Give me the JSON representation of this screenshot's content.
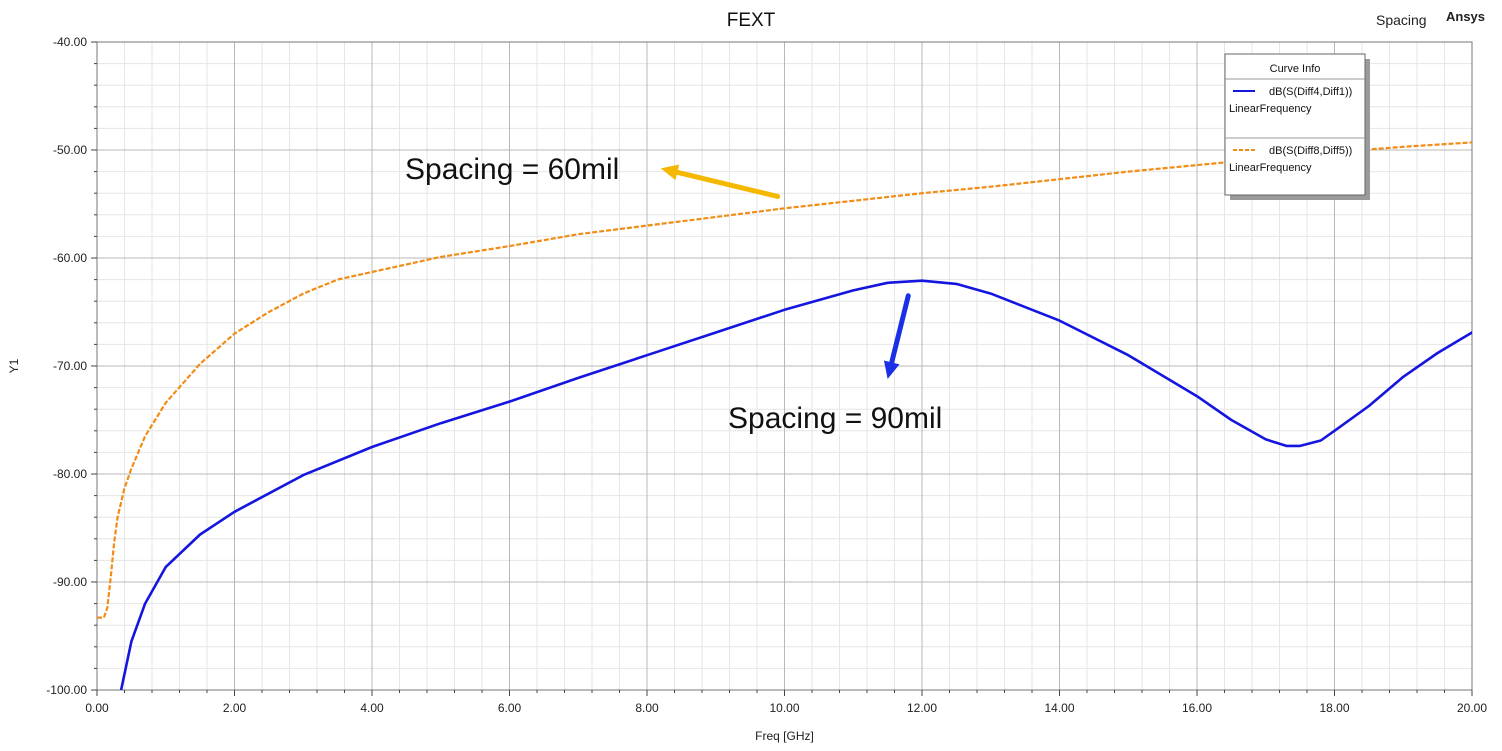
{
  "chart_data": {
    "type": "line",
    "title": "FEXT",
    "project_label": "Spacing",
    "app_label": "Ansys",
    "xlabel": "Freq [GHz]",
    "ylabel": "Y1",
    "xlim": [
      0,
      20
    ],
    "ylim": [
      -100,
      -40
    ],
    "x_ticks": [
      "0.00",
      "2.00",
      "4.00",
      "6.00",
      "8.00",
      "10.00",
      "12.00",
      "14.00",
      "16.00",
      "18.00",
      "20.00"
    ],
    "y_ticks": [
      "-40.00",
      "-50.00",
      "-60.00",
      "-70.00",
      "-80.00",
      "-90.00",
      "-100.00"
    ],
    "grid": true,
    "legend": {
      "title": "Curve Info",
      "placement": "top-right",
      "entries": [
        {
          "name": "dB(S(Diff4,Diff1))",
          "sub": "LinearFrequency",
          "color": "#1515e0",
          "style": "solid"
        },
        {
          "name": "dB(S(Diff8,Diff5))",
          "sub": "LinearFrequency",
          "color": "#f28c16",
          "style": "dashed"
        }
      ]
    },
    "series": [
      {
        "name": "dB(S(Diff4,Diff1))",
        "color": "#1515e0",
        "style": "solid",
        "x": [
          0.35,
          0.5,
          0.7,
          1.0,
          1.5,
          2.0,
          3.0,
          4.0,
          5.0,
          6.0,
          7.0,
          8.0,
          9.0,
          10.0,
          11.0,
          11.5,
          12.0,
          12.5,
          13.0,
          14.0,
          15.0,
          16.0,
          16.5,
          17.0,
          17.3,
          17.5,
          17.8,
          18.0,
          18.5,
          19.0,
          19.5,
          20.0
        ],
        "y": [
          -100.0,
          -95.5,
          -92.0,
          -88.6,
          -85.6,
          -83.5,
          -80.1,
          -77.5,
          -75.3,
          -73.3,
          -71.1,
          -69.0,
          -66.9,
          -64.8,
          -63.0,
          -62.3,
          -62.1,
          -62.4,
          -63.3,
          -65.8,
          -69.0,
          -72.8,
          -75.0,
          -76.8,
          -77.4,
          -77.4,
          -76.9,
          -76.0,
          -73.7,
          -71.0,
          -68.8,
          -66.9
        ]
      },
      {
        "name": "dB(S(Diff8,Diff5))",
        "color": "#f28c16",
        "style": "dashed",
        "x": [
          0.0,
          0.1,
          0.15,
          0.2,
          0.25,
          0.3,
          0.4,
          0.5,
          0.7,
          1.0,
          1.5,
          2.0,
          2.5,
          3.0,
          3.5,
          4.0,
          5.0,
          6.0,
          7.0,
          8.0,
          9.0,
          10.0,
          11.0,
          12.0,
          13.0,
          14.0,
          15.0,
          16.0,
          17.0,
          18.0,
          19.0,
          20.0
        ],
        "y": [
          -93.3,
          -93.3,
          -92.4,
          -89.5,
          -86.3,
          -84.0,
          -81.3,
          -79.5,
          -76.5,
          -73.4,
          -69.8,
          -67.0,
          -65.0,
          -63.3,
          -62.0,
          -61.3,
          -59.9,
          -58.9,
          -57.8,
          -57.0,
          -56.2,
          -55.4,
          -54.7,
          -54.0,
          -53.4,
          -52.7,
          -52.0,
          -51.4,
          -50.8,
          -50.2,
          -49.7,
          -49.3
        ]
      }
    ],
    "annotations": [
      {
        "text": "Spacing = 60mil",
        "color": "#f5b800",
        "arrow_from": [
          9.9,
          -54.3
        ],
        "arrow_to": [
          8.2,
          -51.7
        ]
      },
      {
        "text": "Spacing = 90mil",
        "color": "#1a2fe6",
        "arrow_from": [
          11.8,
          -63.5
        ],
        "arrow_to": [
          11.5,
          -71.2
        ]
      }
    ]
  }
}
